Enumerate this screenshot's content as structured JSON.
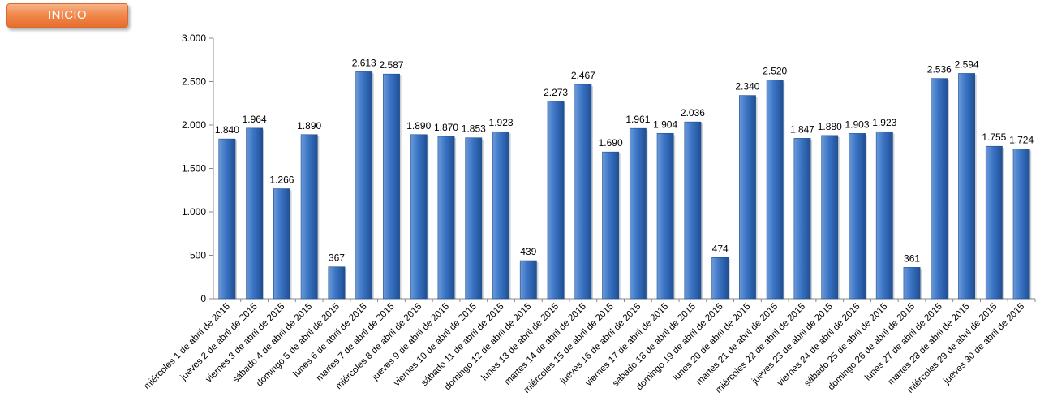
{
  "header": {
    "inicio_label": "INICIO"
  },
  "colors": {
    "bar": "#3a73c4",
    "bar_dark": "#1f4f93",
    "bar_light": "#6b9ad8",
    "button": "#f08a4e"
  },
  "chart_data": {
    "type": "bar",
    "title": "",
    "xlabel": "",
    "ylabel": "",
    "ylim": [
      0,
      3000
    ],
    "yticks": [
      0,
      500,
      1000,
      1500,
      2000,
      2500,
      3000
    ],
    "ytick_labels": [
      "0",
      "500",
      "1.000",
      "1.500",
      "2.000",
      "2.500",
      "3.000"
    ],
    "grid": false,
    "legend": "none",
    "categories": [
      "miércoles 1 de abril de 2015",
      "jueves 2 de abril de 2015",
      "viernes 3 de abril de 2015",
      "sábado 4 de abril de 2015",
      "domingo 5 de abril de 2015",
      "lunes 6 de abril de 2015",
      "martes 7 de abril de 2015",
      "miércoles 8 de abril de 2015",
      "jueves 9 de abril de 2015",
      "viernes 10 de abril de 2015",
      "sábado 11 de abril de 2015",
      "domingo 12 de abril de 2015",
      "lunes 13 de abril de 2015",
      "martes 14 de abril de 2015",
      "miércoles 15 de abril de 2015",
      "jueves 16 de abril de 2015",
      "viernes 17 de abril de 2015",
      "sábado 18 de abril de 2015",
      "domingo 19 de abril de 2015",
      "lunes 20 de abril de 2015",
      "martes 21 de abril de 2015",
      "miércoles 22 de abril de 2015",
      "jueves 23 de abril de 2015",
      "viernes 24 de abril de 2015",
      "sábado 25 de abril de 2015",
      "domingo 26 de abril de 2015",
      "lunes 27 de abril de 2015",
      "martes 28 de abril de 2015",
      "miércoles 29 de abril de 2015",
      "jueves 30 de abril de 2015"
    ],
    "values": [
      1840,
      1964,
      1266,
      1890,
      367,
      2613,
      2587,
      1890,
      1870,
      1853,
      1923,
      439,
      2273,
      2467,
      1690,
      1961,
      1904,
      2036,
      474,
      2340,
      2520,
      1847,
      1880,
      1903,
      1923,
      361,
      2536,
      2594,
      1755,
      1724
    ],
    "value_labels": [
      "1.840",
      "1.964",
      "1.266",
      "1.890",
      "367",
      "2.613",
      "2.587",
      "1.890",
      "1.870",
      "1.853",
      "1.923",
      "439",
      "2.273",
      "2.467",
      "1.690",
      "1.961",
      "1.904",
      "2.036",
      "474",
      "2.340",
      "2.520",
      "1.847",
      "1.880",
      "1.903",
      "1.923",
      "361",
      "2.536",
      "2.594",
      "1.755",
      "1.724"
    ]
  }
}
